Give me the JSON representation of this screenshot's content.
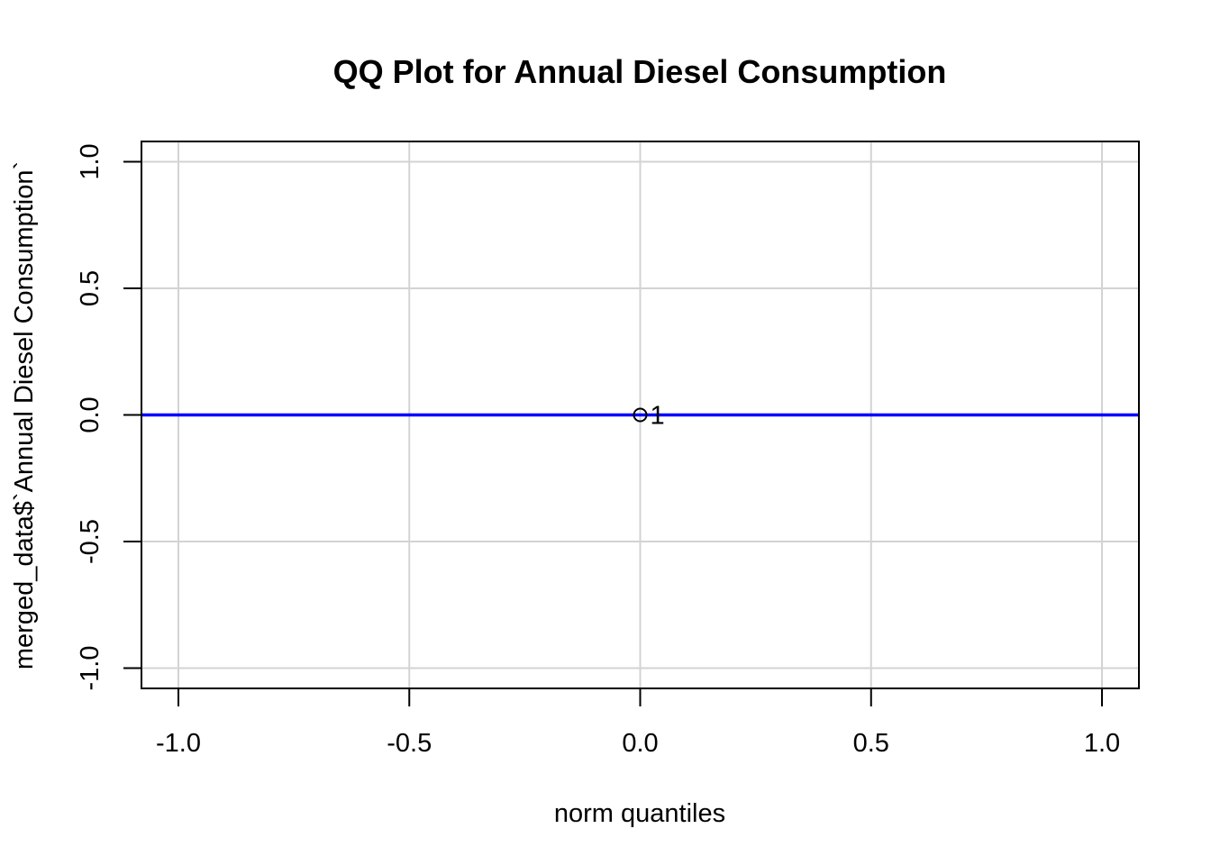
{
  "chart_data": {
    "type": "scatter",
    "title": "QQ Plot for Annual Diesel Consumption",
    "xlabel": "norm quantiles",
    "ylabel": "merged_data$`Annual Diesel Consumption`",
    "xlim": [
      -1.08,
      1.08
    ],
    "ylim": [
      -1.08,
      1.08
    ],
    "x_ticks": [
      -1.0,
      -0.5,
      0.0,
      0.5,
      1.0
    ],
    "y_ticks": [
      -1.0,
      -0.5,
      0.0,
      0.5,
      1.0
    ],
    "x_tick_labels": [
      "-1.0",
      "-0.5",
      "0.0",
      "0.5",
      "1.0"
    ],
    "y_tick_labels": [
      "-1.0",
      "-0.5",
      "0.0",
      "0.5",
      "1.0"
    ],
    "grid": true,
    "points": [
      {
        "x": 0.0,
        "y": 0.0,
        "label": "1"
      }
    ],
    "reference_line": {
      "intercept": 0.0,
      "slope": 0.0
    },
    "colors": {
      "line": "#0000ff",
      "grid": "#d3d3d3",
      "point": "#000000",
      "axis": "#000000"
    }
  }
}
